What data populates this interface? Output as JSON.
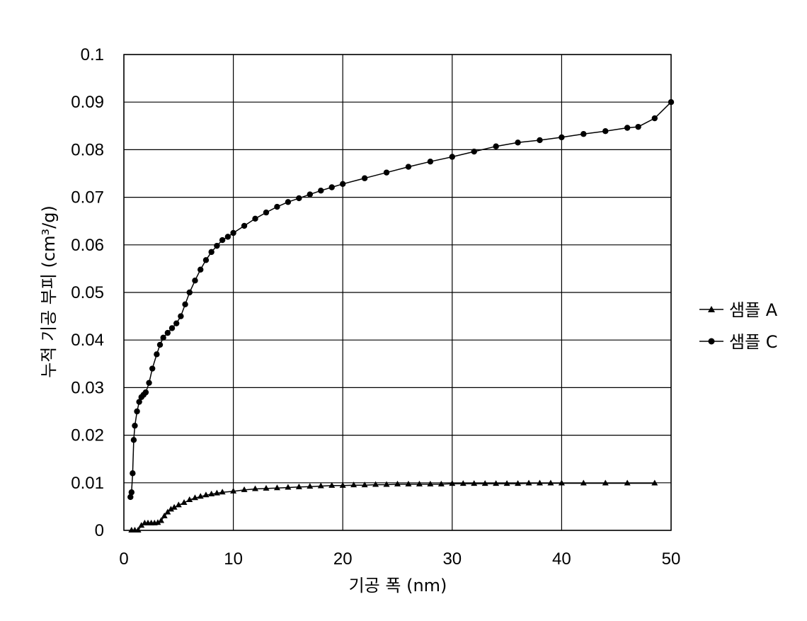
{
  "chart_data": {
    "type": "line",
    "title": "",
    "xlabel": "기공 폭 (nm)",
    "ylabel": "누적 기공 부피 (cm³/g)",
    "xlim": [
      0,
      50
    ],
    "ylim": [
      0,
      0.1
    ],
    "x_ticks": [
      "0",
      "10",
      "20",
      "30",
      "40",
      "50"
    ],
    "y_ticks": [
      "0",
      "0.01",
      "0.02",
      "0.03",
      "0.04",
      "0.05",
      "0.06",
      "0.07",
      "0.08",
      "0.09",
      "0.1"
    ],
    "grid": true,
    "legend_position": "right",
    "series": [
      {
        "name": "샘플 A",
        "marker": "triangle",
        "x": [
          0.7,
          1.0,
          1.3,
          1.6,
          1.9,
          2.2,
          2.5,
          2.8,
          3.1,
          3.4,
          3.7,
          4.0,
          4.3,
          4.6,
          5.0,
          5.5,
          6.0,
          6.5,
          7.0,
          7.5,
          8.0,
          8.5,
          9.0,
          10,
          11,
          12,
          13,
          14,
          15,
          16,
          17,
          18,
          19,
          20,
          21,
          22,
          23,
          24,
          25,
          26,
          27,
          28,
          29,
          30,
          31,
          32,
          33,
          34,
          35,
          36,
          37,
          38,
          39,
          40,
          42,
          44,
          46,
          48.5
        ],
        "y": [
          0,
          0,
          0,
          0.001,
          0.0015,
          0.0015,
          0.0015,
          0.0015,
          0.0016,
          0.002,
          0.003,
          0.0038,
          0.0044,
          0.0048,
          0.0053,
          0.0058,
          0.0064,
          0.0068,
          0.0071,
          0.0074,
          0.0076,
          0.0078,
          0.008,
          0.0082,
          0.0085,
          0.0087,
          0.0088,
          0.0089,
          0.009,
          0.0091,
          0.0092,
          0.0093,
          0.0094,
          0.0094,
          0.0095,
          0.0095,
          0.0096,
          0.0096,
          0.0097,
          0.0097,
          0.0097,
          0.0097,
          0.0097,
          0.0098,
          0.0098,
          0.0098,
          0.0098,
          0.0098,
          0.0098,
          0.0098,
          0.0099,
          0.0099,
          0.0099,
          0.0099,
          0.0099,
          0.0099,
          0.0099,
          0.0099
        ]
      },
      {
        "name": "샘플 C",
        "marker": "circle",
        "x": [
          0.6,
          0.7,
          0.8,
          0.9,
          1.0,
          1.2,
          1.4,
          1.6,
          1.8,
          2.0,
          2.3,
          2.6,
          3.0,
          3.3,
          3.6,
          4.0,
          4.4,
          4.8,
          5.2,
          5.6,
          6.0,
          6.5,
          7.0,
          7.5,
          8.0,
          8.5,
          9.0,
          9.5,
          10,
          11,
          12,
          13,
          14,
          15,
          16,
          17,
          18,
          19,
          20,
          22,
          24,
          26,
          28,
          30,
          32,
          34,
          36,
          38,
          40,
          42,
          44,
          46,
          47,
          48.5,
          50
        ],
        "y": [
          0.007,
          0.008,
          0.012,
          0.019,
          0.022,
          0.025,
          0.027,
          0.028,
          0.0285,
          0.029,
          0.031,
          0.034,
          0.037,
          0.039,
          0.0405,
          0.0415,
          0.0425,
          0.0435,
          0.045,
          0.0475,
          0.05,
          0.0525,
          0.0548,
          0.0568,
          0.0585,
          0.0598,
          0.061,
          0.0617,
          0.0625,
          0.064,
          0.0655,
          0.0668,
          0.068,
          0.069,
          0.0698,
          0.0706,
          0.0714,
          0.0721,
          0.0728,
          0.074,
          0.0752,
          0.0764,
          0.0775,
          0.0785,
          0.0796,
          0.0807,
          0.0815,
          0.082,
          0.0826,
          0.0833,
          0.0839,
          0.0846,
          0.0848,
          0.0866,
          0.09
        ]
      }
    ]
  },
  "colors": {
    "line": "#000000",
    "grid": "#000000",
    "background": "#ffffff"
  }
}
